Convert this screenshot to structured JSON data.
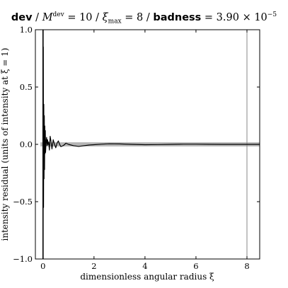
{
  "title": {
    "dev_label": "dev",
    "m_symbol": "M",
    "m_sup": "dev",
    "m_value": "= 10",
    "xi_symbol": "ξ",
    "xi_sub": "max",
    "xi_value": "= 8",
    "badness_label": "badness",
    "badness_value": "= 3.90 × 10",
    "badness_exp": "−5",
    "sep": " / "
  },
  "chart_data": {
    "type": "line",
    "xlabel": "dimensionless angular radius ξ",
    "ylabel": "intensity residual (units of intensity at ξ = 1)",
    "xlim": [
      -0.3,
      8.5
    ],
    "ylim": [
      -1.0,
      1.0
    ],
    "xticks": [
      0,
      2,
      4,
      6,
      8
    ],
    "yticks": [
      -1.0,
      -0.5,
      0.0,
      0.5,
      1.0
    ],
    "xtick_labels": [
      "0",
      "2",
      "4",
      "6",
      "8"
    ],
    "ytick_labels": [
      "−1.0",
      "−0.5",
      "0.0",
      "0.5",
      "1.0"
    ],
    "vertical_lines": [
      0,
      8
    ],
    "band": {
      "x": [
        -0.1,
        8.5
      ],
      "y": [
        -0.018,
        0.018
      ],
      "color": "#b5b5b5"
    },
    "series": [
      {
        "color": "#000000",
        "x": [
          0.0,
          0.01,
          0.02,
          0.03,
          0.04,
          0.05,
          0.06,
          0.07,
          0.08,
          0.09,
          0.1,
          0.12,
          0.14,
          0.16,
          0.18,
          0.2,
          0.22,
          0.25,
          0.28,
          0.31,
          0.35,
          0.4,
          0.45,
          0.5,
          0.55,
          0.6,
          0.65,
          0.7,
          0.8,
          0.9,
          1.0,
          1.2,
          1.4,
          1.6,
          1.8,
          2.0,
          2.3,
          2.6,
          3.0,
          3.5,
          4.0,
          4.5,
          5.0,
          5.5,
          6.0,
          6.5,
          7.0,
          7.5,
          8.0,
          8.5
        ],
        "y": [
          0.0,
          0.85,
          -0.55,
          0.35,
          -0.3,
          0.25,
          -0.22,
          0.16,
          -0.08,
          0.12,
          -0.07,
          0.02,
          0.06,
          -0.01,
          0.04,
          0.0,
          0.02,
          -0.05,
          0.07,
          0.03,
          -0.04,
          0.04,
          0.0,
          -0.03,
          0.01,
          0.03,
          0.0,
          -0.02,
          -0.01,
          0.01,
          0.0,
          -0.012,
          -0.018,
          -0.012,
          -0.006,
          -0.003,
          0.002,
          0.005,
          0.004,
          0.0,
          -0.003,
          -0.002,
          0.0,
          0.002,
          0.002,
          0.001,
          0.0,
          0.0,
          0.0,
          0.0
        ]
      }
    ]
  }
}
